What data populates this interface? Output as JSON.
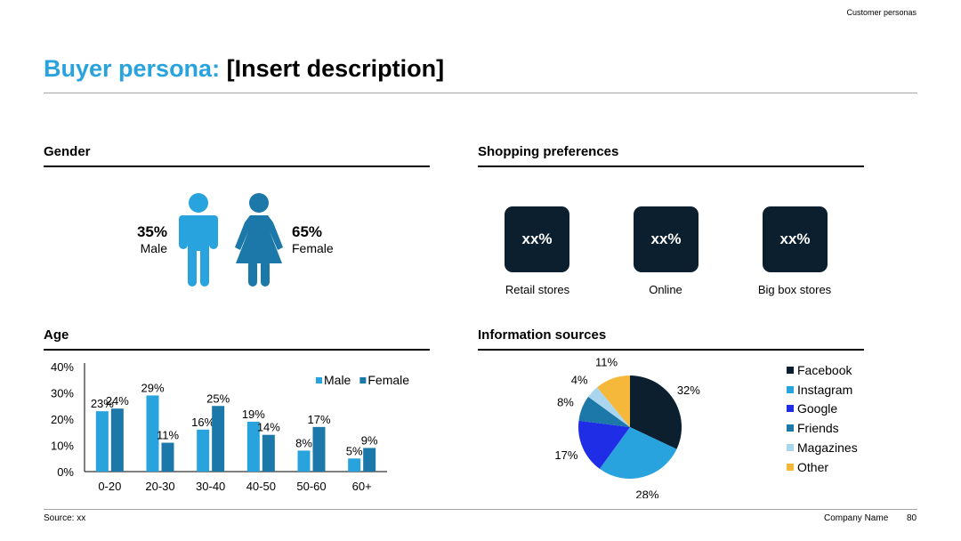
{
  "header": {
    "section_label": "Customer personas"
  },
  "title": {
    "highlight": "Buyer persona:",
    "rest": "[Insert description]"
  },
  "gender": {
    "heading": "Gender",
    "male": {
      "pct": "35%",
      "label": "Male"
    },
    "female": {
      "pct": "65%",
      "label": "Female"
    },
    "colors": {
      "male": "#29a3dd",
      "female": "#1b78a8"
    }
  },
  "shopping": {
    "heading": "Shopping preferences",
    "items": [
      {
        "value": "xx%",
        "label": "Retail stores"
      },
      {
        "value": "xx%",
        "label": "Online"
      },
      {
        "value": "xx%",
        "label": "Big box stores"
      }
    ]
  },
  "age": {
    "heading": "Age"
  },
  "info": {
    "heading": "Information sources"
  },
  "chart_data": [
    {
      "type": "bar",
      "title": "Age",
      "categories": [
        "0-20",
        "20-30",
        "30-40",
        "40-50",
        "50-60",
        "60+"
      ],
      "series": [
        {
          "name": "Male",
          "values": [
            23,
            29,
            16,
            19,
            8,
            5
          ],
          "color": "#29a3dd"
        },
        {
          "name": "Female",
          "values": [
            24,
            11,
            25,
            14,
            17,
            9
          ],
          "color": "#1b78a8"
        }
      ],
      "data_labels": {
        "Male": [
          "23%",
          "29%",
          "16%",
          "19%",
          "8%",
          "5%"
        ],
        "Female": [
          "24%",
          "11%",
          "25%",
          "14%",
          "17%",
          "9%"
        ]
      },
      "y_ticks": [
        "0%",
        "10%",
        "20%",
        "30%",
        "40%"
      ],
      "ylim": [
        0,
        40
      ],
      "legend_position": "top-right"
    },
    {
      "type": "pie",
      "title": "Information sources",
      "labels": [
        "Facebook",
        "Instagram",
        "Google",
        "Friends",
        "Magazines",
        "Other"
      ],
      "values": [
        32,
        28,
        17,
        8,
        4,
        11
      ],
      "data_labels": [
        "32%",
        "28%",
        "17%",
        "8%",
        "4%",
        "11%"
      ],
      "colors": [
        "#0b1f2e",
        "#29a3dd",
        "#1f2ee6",
        "#1b78a8",
        "#a9d6ee",
        "#f5b83b"
      ],
      "legend_position": "right"
    }
  ],
  "footer": {
    "source": "Source: xx",
    "company": "Company Name",
    "page": "80"
  }
}
